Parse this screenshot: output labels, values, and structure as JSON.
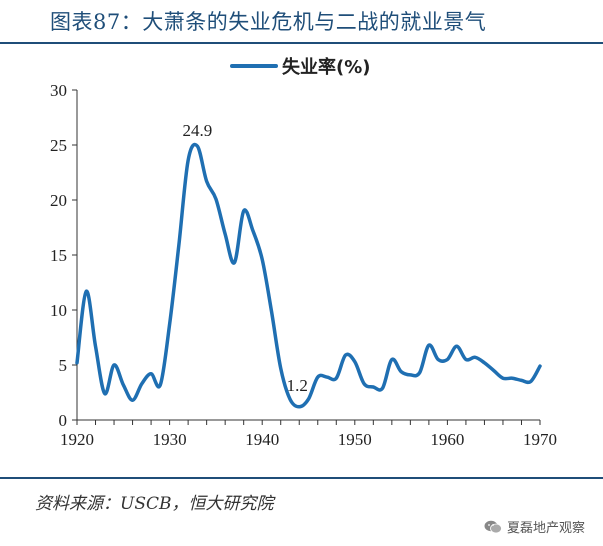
{
  "title": "图表87：大萧条的失业危机与二战的就业景气",
  "source": "资料来源：USCB，恒大研究院",
  "watermark": "夏磊地产观察",
  "chart_data": {
    "type": "line",
    "legend": "失业率(%)",
    "legend_position": "top-center",
    "grid": false,
    "xlim": [
      1920,
      1970
    ],
    "ylim": [
      0,
      30
    ],
    "xticks": [
      "1920",
      "1930",
      "1940",
      "1950",
      "1960",
      "1970"
    ],
    "yticks": [
      "0",
      "5",
      "10",
      "15",
      "20",
      "25",
      "30"
    ],
    "color": "#1f6fb2",
    "series": [
      {
        "name": "失业率(%)",
        "points": [
          [
            1920.0,
            5.2
          ],
          [
            1921.0,
            11.7
          ],
          [
            1922.0,
            6.7
          ],
          [
            1923.0,
            2.4
          ],
          [
            1924.0,
            5.0
          ],
          [
            1925.0,
            3.2
          ],
          [
            1926.0,
            1.8
          ],
          [
            1927.0,
            3.3
          ],
          [
            1928.0,
            4.2
          ],
          [
            1929.0,
            3.2
          ],
          [
            1930.0,
            8.7
          ],
          [
            1931.0,
            15.9
          ],
          [
            1932.0,
            23.6
          ],
          [
            1933.0,
            24.9
          ],
          [
            1934.0,
            21.7
          ],
          [
            1935.0,
            20.1
          ],
          [
            1936.0,
            16.9
          ],
          [
            1937.0,
            14.3
          ],
          [
            1938.0,
            19.0
          ],
          [
            1939.0,
            17.2
          ],
          [
            1940.0,
            14.6
          ],
          [
            1941.0,
            9.9
          ],
          [
            1942.0,
            4.7
          ],
          [
            1943.0,
            1.9
          ],
          [
            1944.0,
            1.2
          ],
          [
            1945.0,
            1.9
          ],
          [
            1946.0,
            3.9
          ],
          [
            1947.0,
            3.9
          ],
          [
            1948.0,
            3.8
          ],
          [
            1949.0,
            5.9
          ],
          [
            1950.0,
            5.3
          ],
          [
            1951.0,
            3.3
          ],
          [
            1952.0,
            3.0
          ],
          [
            1953.0,
            2.9
          ],
          [
            1954.0,
            5.5
          ],
          [
            1955.0,
            4.4
          ],
          [
            1956.0,
            4.1
          ],
          [
            1957.0,
            4.3
          ],
          [
            1958.0,
            6.8
          ],
          [
            1959.0,
            5.5
          ],
          [
            1960.0,
            5.5
          ],
          [
            1961.0,
            6.7
          ],
          [
            1962.0,
            5.5
          ],
          [
            1963.0,
            5.7
          ],
          [
            1964.0,
            5.2
          ],
          [
            1965.0,
            4.5
          ],
          [
            1966.0,
            3.8
          ],
          [
            1967.0,
            3.8
          ],
          [
            1968.0,
            3.6
          ],
          [
            1969.0,
            3.5
          ],
          [
            1970.0,
            4.9
          ]
        ]
      }
    ],
    "annotations": [
      {
        "label": "24.9",
        "x": 1933.0,
        "y": 24.9
      },
      {
        "label": "1.2",
        "x": 1944.0,
        "y": 1.2
      }
    ]
  }
}
